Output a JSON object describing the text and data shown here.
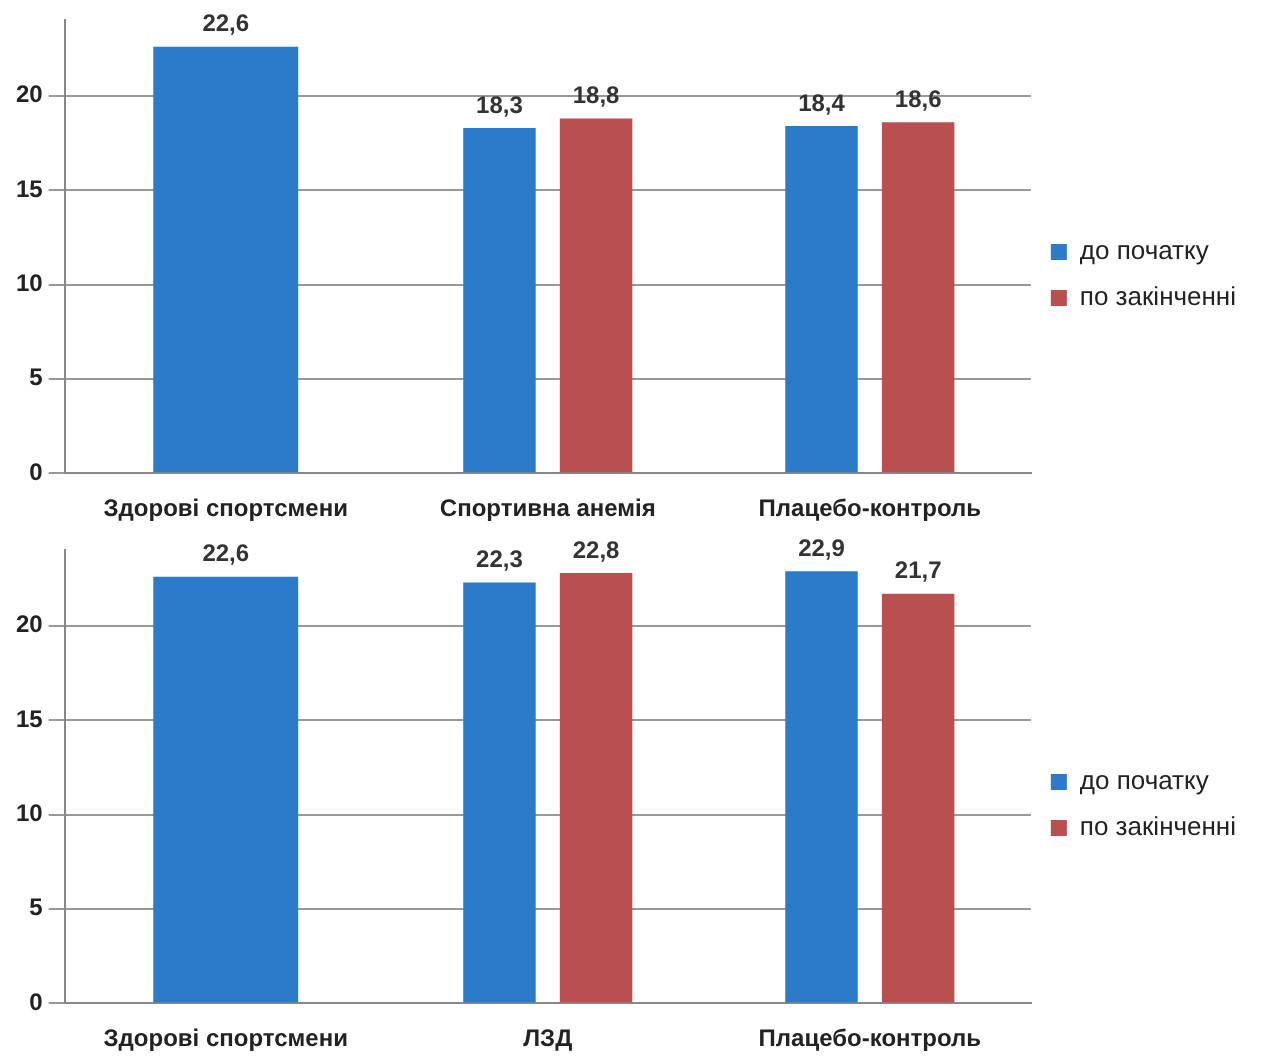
{
  "chart_data": [
    {
      "type": "bar",
      "categories": [
        "Здорові спортсмени",
        "Спортивна анемія",
        "Плацебо-контроль"
      ],
      "series": [
        {
          "name": "до початку",
          "color": "#2b7bc9",
          "values": [
            22.6,
            18.3,
            18.4
          ],
          "value_labels": [
            "22,6",
            "18,3",
            "18,4"
          ]
        },
        {
          "name": "по закінченні",
          "color": "#b9504f",
          "values": [
            null,
            18.8,
            18.6
          ],
          "value_labels": [
            null,
            "18,8",
            "18,6"
          ]
        }
      ],
      "ylim": [
        0,
        24
      ],
      "yticks": [
        0,
        5,
        10,
        15,
        20
      ],
      "grid": "y",
      "legend": "right"
    },
    {
      "type": "bar",
      "categories": [
        "Здорові спортсмени",
        "ЛЗД",
        "Плацебо-контроль"
      ],
      "series": [
        {
          "name": "до початку",
          "color": "#2b7bc9",
          "values": [
            22.6,
            22.3,
            22.9
          ],
          "value_labels": [
            "22,6",
            "22,3",
            "22,9"
          ]
        },
        {
          "name": "по закінченні",
          "color": "#b9504f",
          "values": [
            null,
            22.8,
            21.7
          ],
          "value_labels": [
            null,
            "22,8",
            "21,7"
          ]
        }
      ],
      "ylim": [
        0,
        24
      ],
      "yticks": [
        0,
        5,
        10,
        15,
        20
      ],
      "grid": "y",
      "legend": "right"
    }
  ]
}
